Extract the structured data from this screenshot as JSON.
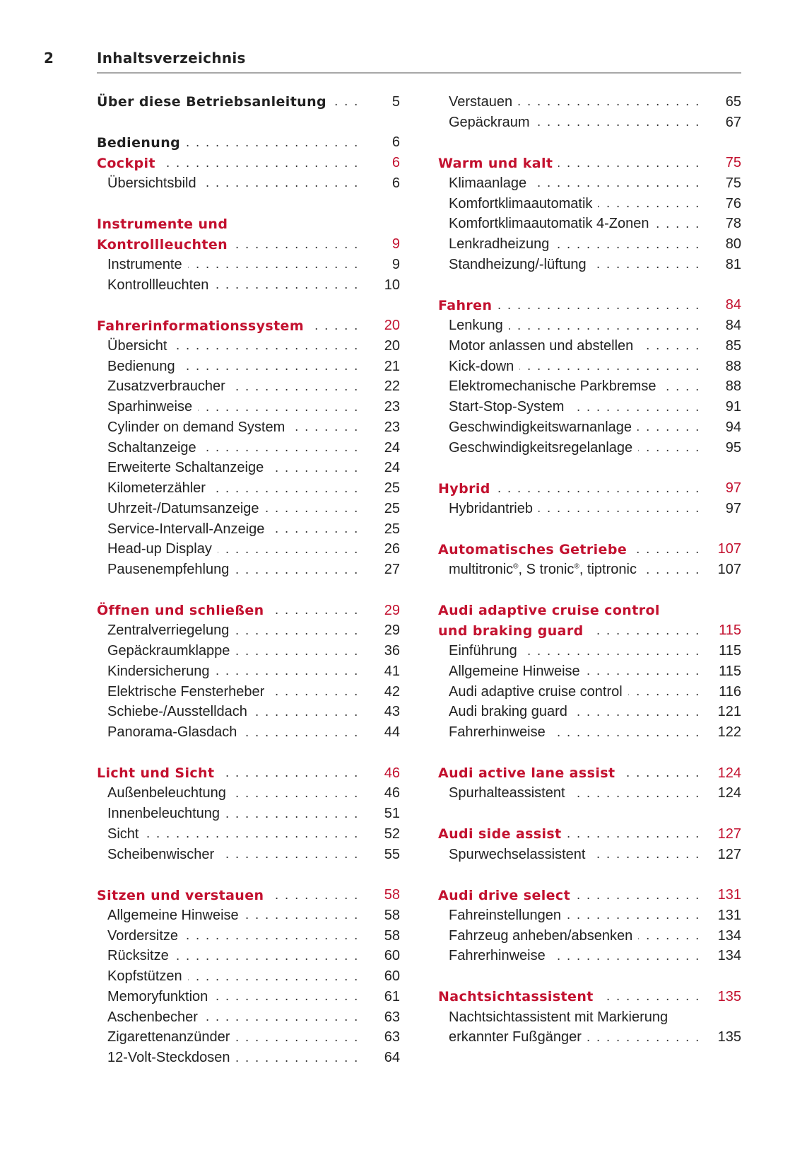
{
  "header": {
    "page_number": "2",
    "title": "Inhaltsverzeichnis"
  },
  "colors": {
    "section_red": "#c3112f",
    "text": "#222222",
    "rule": "#a8a8a8"
  },
  "left_column": [
    [
      {
        "level": "main",
        "title": "Über diese Betriebsanleitung",
        "page": "5"
      }
    ],
    [
      {
        "level": "main",
        "title": "Bedienung",
        "page": "6"
      },
      {
        "level": "section",
        "title": "Cockpit",
        "page": "6"
      },
      {
        "level": "sub",
        "title": "Übersichtsbild",
        "page": "6"
      }
    ],
    [
      {
        "level": "section",
        "title": "Instrumente und",
        "page": ""
      },
      {
        "level": "section",
        "title": "Kontrollleuchten",
        "page": "9"
      },
      {
        "level": "sub",
        "title": "Instrumente",
        "page": "9"
      },
      {
        "level": "sub",
        "title": "Kontrollleuchten",
        "page": "10"
      }
    ],
    [
      {
        "level": "section",
        "title": "Fahrerinformationssystem",
        "page": "20"
      },
      {
        "level": "sub",
        "title": "Übersicht",
        "page": "20"
      },
      {
        "level": "sub",
        "title": "Bedienung",
        "page": "21"
      },
      {
        "level": "sub",
        "title": "Zusatzverbraucher",
        "page": "22"
      },
      {
        "level": "sub",
        "title": "Sparhinweise",
        "page": "23"
      },
      {
        "level": "sub",
        "title": "Cylinder on demand System",
        "page": "23"
      },
      {
        "level": "sub",
        "title": "Schaltanzeige",
        "page": "24"
      },
      {
        "level": "sub",
        "title": "Erweiterte Schaltanzeige",
        "page": "24"
      },
      {
        "level": "sub",
        "title": "Kilometerzähler",
        "page": "25"
      },
      {
        "level": "sub",
        "title": "Uhrzeit-/Datumsanzeige",
        "page": "25"
      },
      {
        "level": "sub",
        "title": "Service-Intervall-Anzeige",
        "page": "25"
      },
      {
        "level": "sub",
        "title": "Head-up Display",
        "page": "26"
      },
      {
        "level": "sub",
        "title": "Pausenempfehlung",
        "page": "27"
      }
    ],
    [
      {
        "level": "section",
        "title": "Öffnen und schließen",
        "page": "29"
      },
      {
        "level": "sub",
        "title": "Zentralverriegelung",
        "page": "29"
      },
      {
        "level": "sub",
        "title": "Gepäckraumklappe",
        "page": "36"
      },
      {
        "level": "sub",
        "title": "Kindersicherung",
        "page": "41"
      },
      {
        "level": "sub",
        "title": "Elektrische Fensterheber",
        "page": "42"
      },
      {
        "level": "sub",
        "title": "Schiebe-/Ausstelldach",
        "page": "43"
      },
      {
        "level": "sub",
        "title": "Panorama-Glasdach",
        "page": "44"
      }
    ],
    [
      {
        "level": "section",
        "title": "Licht und Sicht",
        "page": "46"
      },
      {
        "level": "sub",
        "title": "Außenbeleuchtung",
        "page": "46"
      },
      {
        "level": "sub",
        "title": "Innenbeleuchtung",
        "page": "51"
      },
      {
        "level": "sub",
        "title": "Sicht",
        "page": "52"
      },
      {
        "level": "sub",
        "title": "Scheibenwischer",
        "page": "55"
      }
    ],
    [
      {
        "level": "section",
        "title": "Sitzen und verstauen",
        "page": "58"
      },
      {
        "level": "sub",
        "title": "Allgemeine Hinweise",
        "page": "58"
      },
      {
        "level": "sub",
        "title": "Vordersitze",
        "page": "58"
      },
      {
        "level": "sub",
        "title": "Rücksitze",
        "page": "60"
      },
      {
        "level": "sub",
        "title": "Kopfstützen",
        "page": "60"
      },
      {
        "level": "sub",
        "title": "Memoryfunktion",
        "page": "61"
      },
      {
        "level": "sub",
        "title": "Aschenbecher",
        "page": "63"
      },
      {
        "level": "sub",
        "title": "Zigarettenanzünder",
        "page": "63"
      },
      {
        "level": "sub",
        "title": "12-Volt-Steckdosen",
        "page": "64"
      }
    ]
  ],
  "right_column": [
    [
      {
        "level": "sub",
        "title": "Verstauen",
        "page": "65"
      },
      {
        "level": "sub",
        "title": "Gepäckraum",
        "page": "67"
      }
    ],
    [
      {
        "level": "section",
        "title": "Warm und kalt",
        "page": "75"
      },
      {
        "level": "sub",
        "title": "Klimaanlage",
        "page": "75"
      },
      {
        "level": "sub",
        "title": "Komfortklimaautomatik",
        "page": "76"
      },
      {
        "level": "sub",
        "title": "Komfortklimaautomatik 4-Zonen",
        "page": "78"
      },
      {
        "level": "sub",
        "title": "Lenkradheizung",
        "page": "80"
      },
      {
        "level": "sub",
        "title": "Standheizung/-lüftung",
        "page": "81"
      }
    ],
    [
      {
        "level": "section",
        "title": "Fahren",
        "page": "84"
      },
      {
        "level": "sub",
        "title": "Lenkung",
        "page": "84"
      },
      {
        "level": "sub",
        "title": "Motor anlassen und abstellen",
        "page": "85"
      },
      {
        "level": "sub",
        "title": "Kick-down",
        "page": "88"
      },
      {
        "level": "sub",
        "title": "Elektromechanische Parkbremse",
        "page": "88"
      },
      {
        "level": "sub",
        "title": "Start-Stop-System",
        "page": "91"
      },
      {
        "level": "sub",
        "title": "Geschwindigkeitswarnanlage",
        "page": "94"
      },
      {
        "level": "sub",
        "title": "Geschwindigkeitsregelanlage",
        "page": "95"
      }
    ],
    [
      {
        "level": "section",
        "title": "Hybrid",
        "page": "97"
      },
      {
        "level": "sub",
        "title": "Hybridantrieb",
        "page": "97"
      }
    ],
    [
      {
        "level": "section",
        "title": "Automatisches Getriebe",
        "page": "107"
      },
      {
        "level": "sub",
        "title": "multitronic®, S tronic®, tiptronic",
        "page": "107"
      }
    ],
    [
      {
        "level": "section",
        "title": "Audi adaptive cruise control",
        "page": ""
      },
      {
        "level": "section",
        "title": "und braking guard",
        "page": "115"
      },
      {
        "level": "sub",
        "title": "Einführung",
        "page": "115"
      },
      {
        "level": "sub",
        "title": "Allgemeine Hinweise",
        "page": "115"
      },
      {
        "level": "sub",
        "title": "Audi adaptive cruise control",
        "page": "116"
      },
      {
        "level": "sub",
        "title": "Audi braking guard",
        "page": "121"
      },
      {
        "level": "sub",
        "title": "Fahrerhinweise",
        "page": "122"
      }
    ],
    [
      {
        "level": "section",
        "title": "Audi active lane assist",
        "page": "124"
      },
      {
        "level": "sub",
        "title": "Spurhalteassistent",
        "page": "124"
      }
    ],
    [
      {
        "level": "section",
        "title": "Audi side assist",
        "page": "127"
      },
      {
        "level": "sub",
        "title": "Spurwechselassistent",
        "page": "127"
      }
    ],
    [
      {
        "level": "section",
        "title": "Audi drive select",
        "page": "131"
      },
      {
        "level": "sub",
        "title": "Fahreinstellungen",
        "page": "131"
      },
      {
        "level": "sub",
        "title": "Fahrzeug anheben/absenken",
        "page": "134"
      },
      {
        "level": "sub",
        "title": "Fahrerhinweise",
        "page": "134"
      }
    ],
    [
      {
        "level": "section",
        "title": "Nachtsichtassistent",
        "page": "135"
      },
      {
        "level": "sub",
        "title": "Nachtsichtassistent mit Markierung",
        "page": ""
      },
      {
        "level": "sub",
        "title": "erkannter Fußgänger",
        "page": "135"
      }
    ]
  ]
}
